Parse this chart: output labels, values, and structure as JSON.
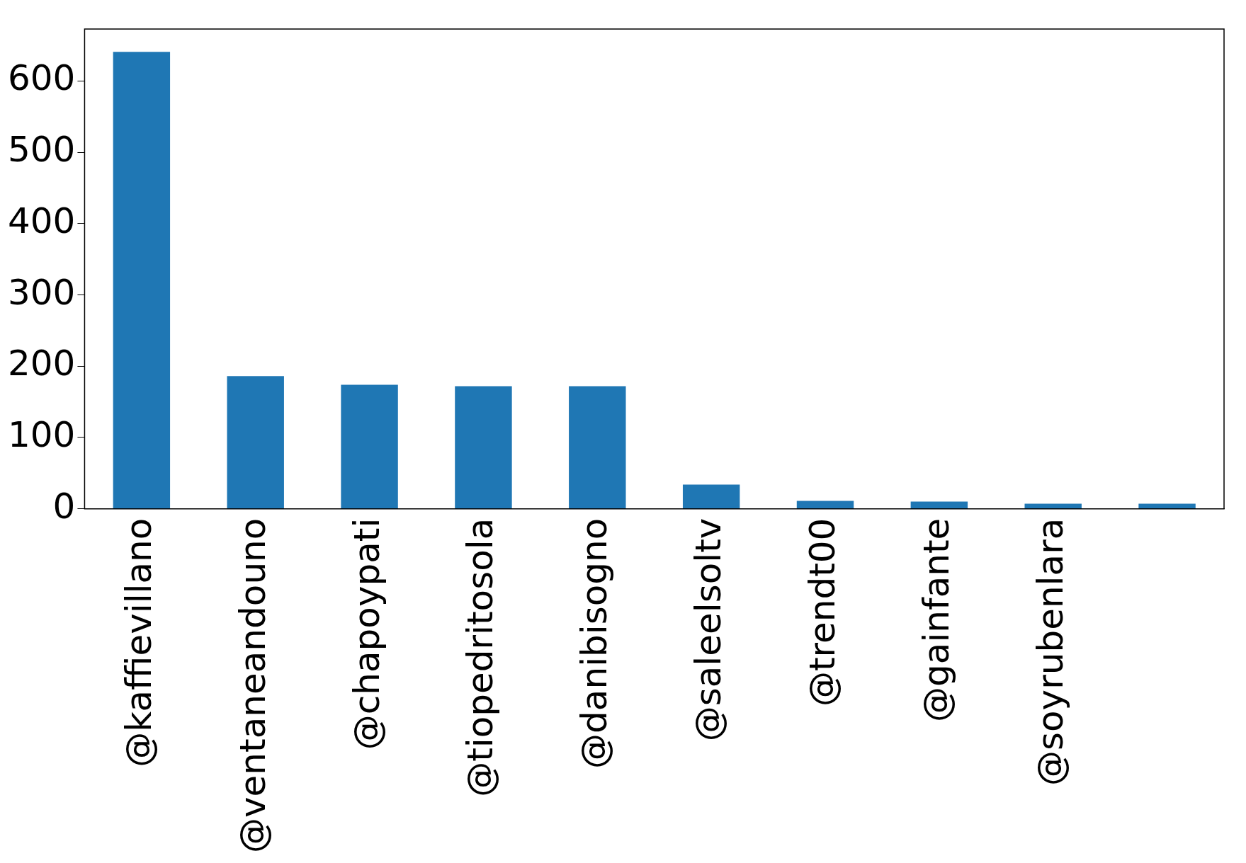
{
  "chart_data": {
    "type": "bar",
    "categories": [
      "@kaffievillano",
      "@ventaneandouno",
      "@chapoypati",
      "@tiopedritosola",
      "@danibisogno",
      "@saleelsoltv",
      "@trendt00",
      "@gainfante",
      "@soyrubenlara",
      null
    ],
    "values": [
      641,
      186,
      174,
      172,
      172,
      34,
      11,
      10,
      7,
      7
    ],
    "color": "#1f77b4",
    "ylim": [
      0,
      673
    ],
    "yticks": [
      0,
      100,
      200,
      300,
      400,
      500,
      600
    ],
    "grid": false,
    "legend": false
  }
}
